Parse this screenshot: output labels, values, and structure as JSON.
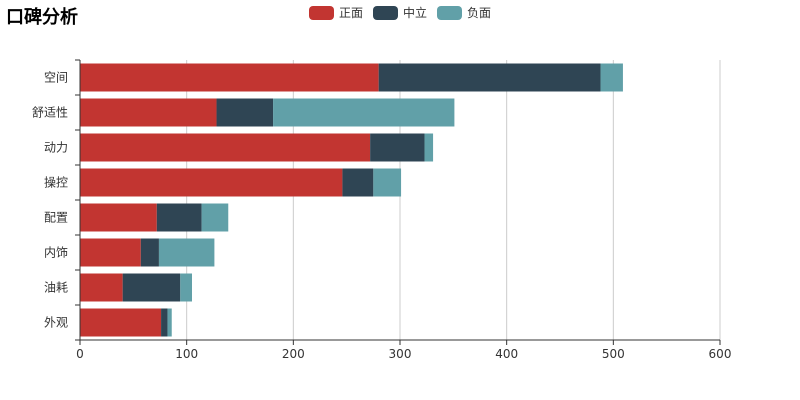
{
  "chart_data": {
    "type": "bar",
    "orientation": "horizontal",
    "stacked": true,
    "title": "口碑分析",
    "categories": [
      "空间",
      "舒适性",
      "动力",
      "操控",
      "配置",
      "内饰",
      "油耗",
      "外观"
    ],
    "series": [
      {
        "name": "正面",
        "color": "#c23531",
        "values": [
          280,
          128,
          272,
          246,
          72,
          57,
          40,
          76
        ]
      },
      {
        "name": "中立",
        "color": "#2f4554",
        "values": [
          208,
          53,
          51,
          29,
          42,
          17,
          54,
          6
        ]
      },
      {
        "name": "负面",
        "color": "#61a0a8",
        "values": [
          21,
          170,
          8,
          26,
          25,
          52,
          11,
          4
        ]
      }
    ],
    "xlim": [
      0,
      600
    ],
    "xticks": [
      "0",
      "100",
      "200",
      "300",
      "400",
      "500",
      "600"
    ],
    "grid": true,
    "legend": "top-center"
  }
}
